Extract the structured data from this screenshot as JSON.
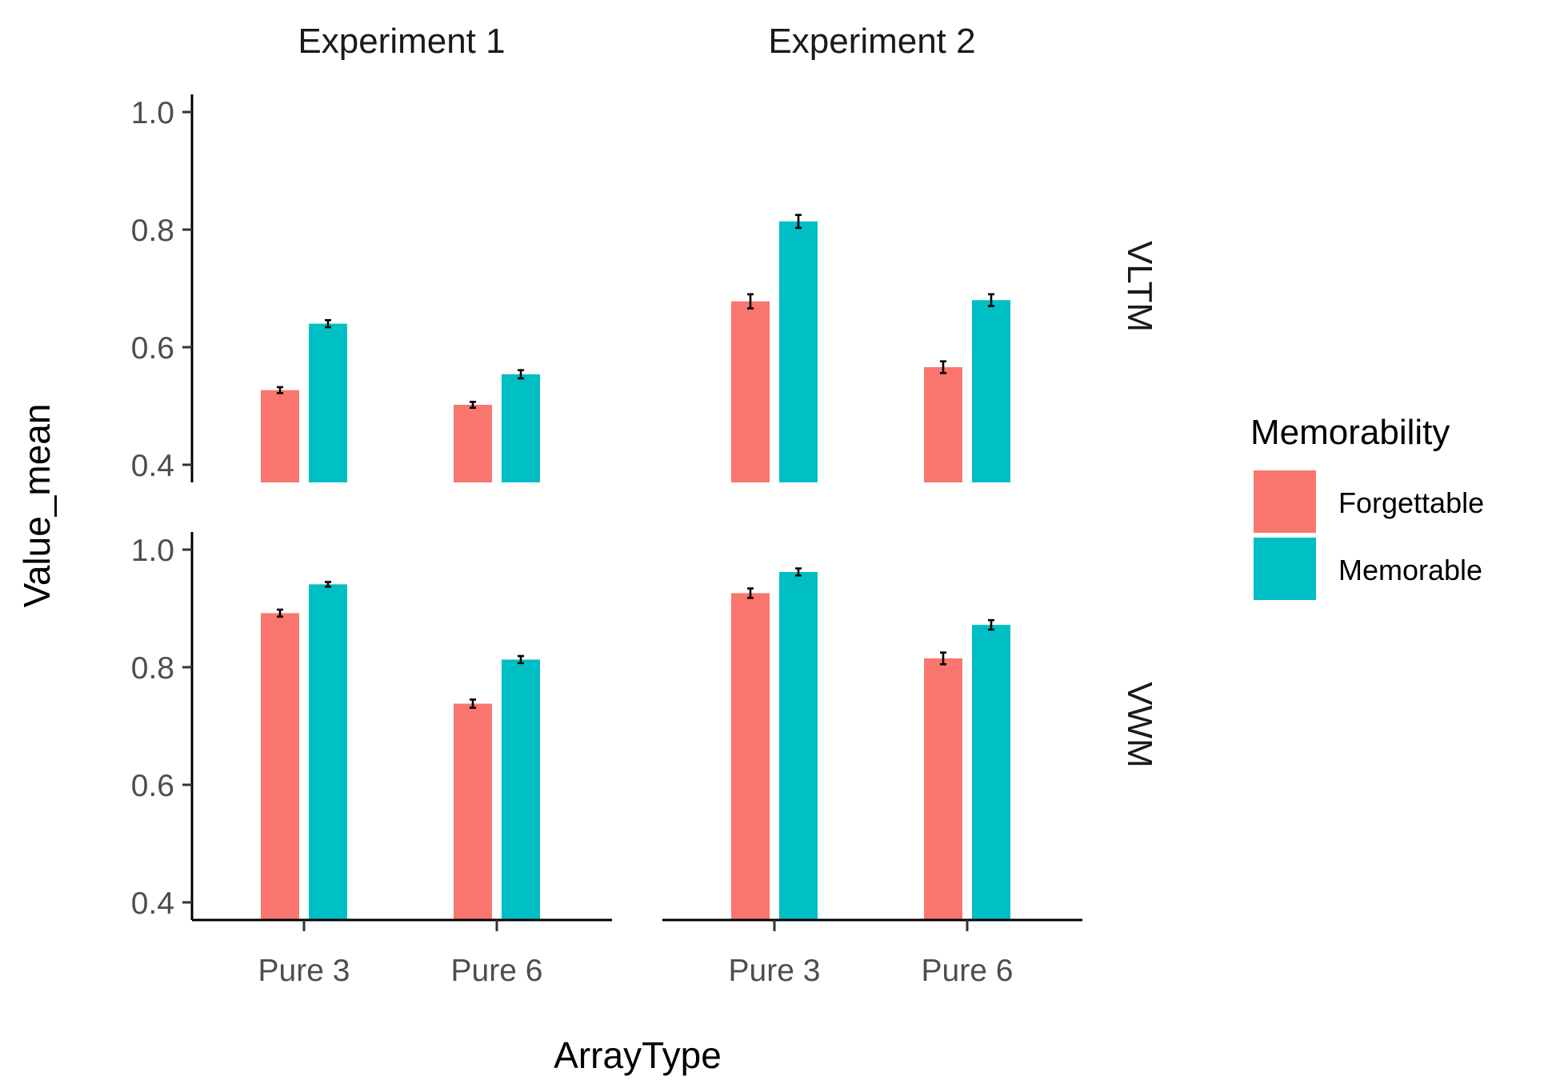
{
  "chart_data": {
    "type": "bar",
    "x_label": "ArrayType",
    "y_label": "Value_mean",
    "ylim": [
      0.37,
      1.03
    ],
    "y_ticks": [
      0.4,
      0.6,
      0.8,
      1.0
    ],
    "y_tick_labels": [
      "0.4",
      "0.6",
      "0.8",
      "1.0"
    ],
    "categories": [
      "Pure 3",
      "Pure 6"
    ],
    "facet_columns": [
      "Experiment 1",
      "Experiment 2"
    ],
    "facet_rows": [
      "VLTM",
      "VWM"
    ],
    "legend": {
      "title": "Memorability",
      "position": "right",
      "entries": [
        "Forgettable",
        "Memorable"
      ]
    },
    "colors": {
      "Forgettable": "#F8766D",
      "Memorable": "#00BFC4"
    },
    "grid": false,
    "panels": [
      {
        "column": "Experiment 1",
        "row": "VLTM",
        "series": [
          {
            "name": "Forgettable",
            "values": [
              0.527,
              0.502
            ],
            "errors": [
              0.005,
              0.005
            ]
          },
          {
            "name": "Memorable",
            "values": [
              0.64,
              0.554
            ],
            "errors": [
              0.006,
              0.007
            ]
          }
        ]
      },
      {
        "column": "Experiment 2",
        "row": "VLTM",
        "series": [
          {
            "name": "Forgettable",
            "values": [
              0.678,
              0.566
            ],
            "errors": [
              0.012,
              0.01
            ]
          },
          {
            "name": "Memorable",
            "values": [
              0.814,
              0.68
            ],
            "errors": [
              0.011,
              0.01
            ]
          }
        ]
      },
      {
        "column": "Experiment 1",
        "row": "VWM",
        "series": [
          {
            "name": "Forgettable",
            "values": [
              0.892,
              0.738
            ],
            "errors": [
              0.006,
              0.007
            ]
          },
          {
            "name": "Memorable",
            "values": [
              0.941,
              0.813
            ],
            "errors": [
              0.004,
              0.006
            ]
          }
        ]
      },
      {
        "column": "Experiment 2",
        "row": "VWM",
        "series": [
          {
            "name": "Forgettable",
            "values": [
              0.926,
              0.815
            ],
            "errors": [
              0.008,
              0.01
            ]
          },
          {
            "name": "Memorable",
            "values": [
              0.962,
              0.872
            ],
            "errors": [
              0.006,
              0.008
            ]
          }
        ]
      }
    ]
  }
}
